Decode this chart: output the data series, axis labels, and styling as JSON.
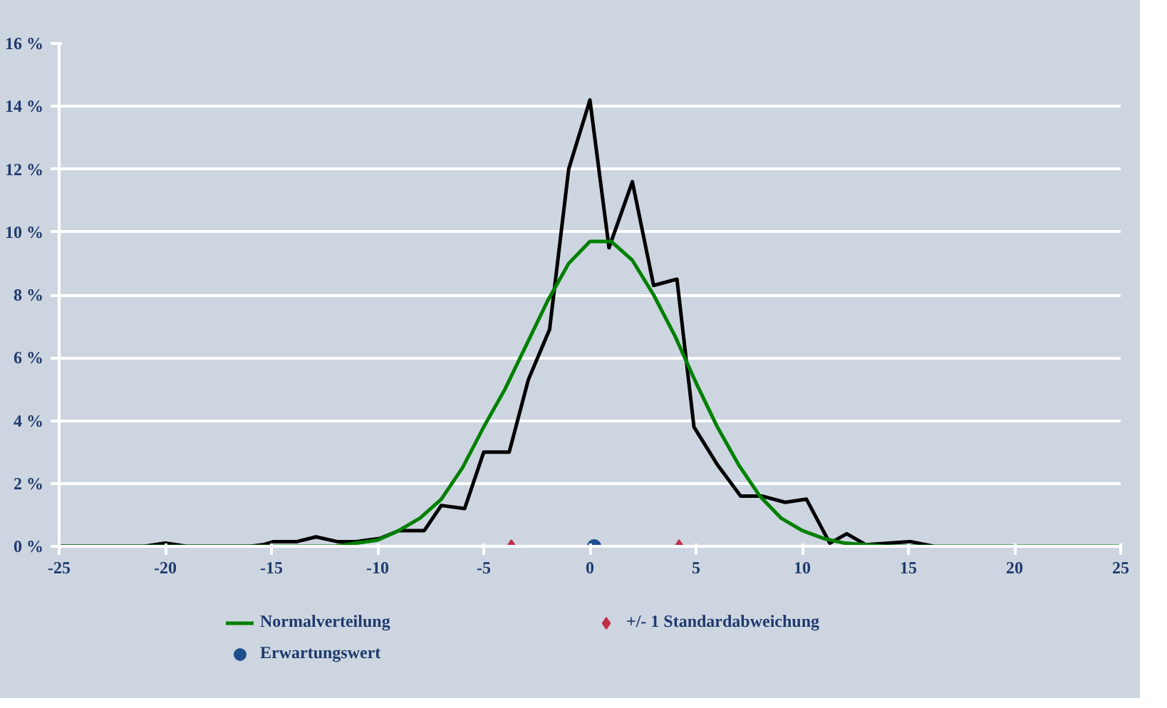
{
  "chart_data": {
    "type": "line",
    "xlim": [
      -25,
      25
    ],
    "ylim": [
      0,
      16
    ],
    "xticks": [
      -25,
      -20,
      -15,
      -10,
      -5,
      0,
      5,
      10,
      15,
      20,
      25
    ],
    "yticks": [
      {
        "value": 0,
        "label": "0 %"
      },
      {
        "value": 2,
        "label": "2 %"
      },
      {
        "value": 4,
        "label": "4 %"
      },
      {
        "value": 6,
        "label": "6 %"
      },
      {
        "value": 8,
        "label": "8 %"
      },
      {
        "value": 10,
        "label": "10 %"
      },
      {
        "value": 12,
        "label": "12 %"
      },
      {
        "value": 14,
        "label": "14 %"
      },
      {
        "value": 16,
        "label": "16 %"
      }
    ],
    "grid": "y",
    "legend": "bottom",
    "series": [
      {
        "color": "#000000",
        "x": [
          -25,
          -21,
          -20,
          -19,
          -16,
          -15.4,
          -14.9,
          -13.8,
          -12.9,
          -11.9,
          -11,
          -9.9,
          -9,
          -7.8,
          -7,
          -5.9,
          -5,
          -3.8,
          -2.9,
          -1.9,
          -1,
          0,
          0.9,
          2,
          3,
          4.1,
          4.9,
          6,
          7.1,
          8.1,
          9.2,
          10.2,
          11.3,
          12.1,
          13,
          15.1,
          16.2
        ],
        "values": [
          0,
          0,
          0.1,
          0,
          0,
          0.05,
          0.15,
          0.15,
          0.3,
          0.15,
          0.15,
          0.25,
          0.5,
          0.5,
          1.3,
          1.2,
          3,
          3,
          5.3,
          6.9,
          12,
          14.2,
          9.5,
          11.6,
          8.3,
          8.5,
          3.8,
          2.6,
          1.6,
          1.6,
          1.4,
          1.5,
          0.1,
          0.4,
          0.05,
          0.15,
          0
        ]
      },
      {
        "name": "Normalverteilung",
        "color": "#008000",
        "x": [
          -25,
          -12,
          -11,
          -10,
          -9,
          -8,
          -7,
          -6,
          -5,
          -4,
          -3,
          -2,
          -1,
          0,
          1,
          2,
          3,
          4,
          5,
          6,
          7,
          8,
          9,
          10,
          11,
          12,
          13,
          14,
          25
        ],
        "values": [
          0,
          0,
          0.1,
          0.2,
          0.5,
          0.9,
          1.5,
          2.5,
          3.8,
          5.0,
          6.4,
          7.8,
          9.0,
          9.7,
          9.7,
          9.1,
          8.0,
          6.7,
          5.2,
          3.8,
          2.6,
          1.6,
          0.9,
          0.5,
          0.25,
          0.1,
          0.05,
          0,
          0
        ]
      },
      {
        "type": "scatter",
        "name": "Erwartungswert",
        "color": "#1f4e8c",
        "marker": "circle",
        "x": [
          0.2
        ],
        "values": [
          0
        ]
      },
      {
        "type": "scatter",
        "name": "+/- 1 Standardabweichung",
        "color": "#c0304a",
        "marker": "diamond",
        "x": [
          -3.7,
          4.2
        ],
        "values": [
          0,
          0
        ]
      }
    ]
  }
}
